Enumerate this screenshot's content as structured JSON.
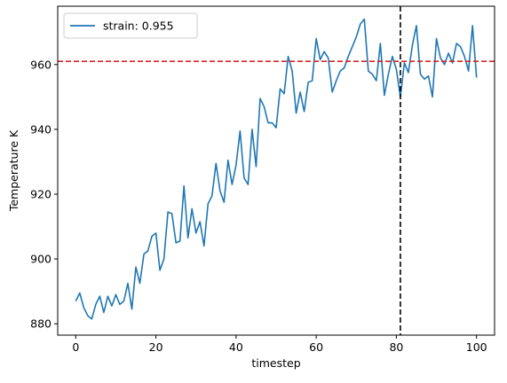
{
  "chart_data": {
    "type": "line",
    "xlabel": "timestep",
    "ylabel": "Temperature K",
    "xlim": [
      -4.5,
      104.5
    ],
    "ylim": [
      876.5,
      978
    ],
    "xticks": [
      0,
      20,
      40,
      60,
      80,
      100
    ],
    "yticks": [
      880,
      900,
      920,
      940,
      960
    ],
    "grid": false,
    "legend_position": "upper-left",
    "series": [
      {
        "name": "strain: 0.955",
        "color": "#1f77b4",
        "x": [
          0,
          1,
          2,
          3,
          4,
          5,
          6,
          7,
          8,
          9,
          10,
          11,
          12,
          13,
          14,
          15,
          16,
          17,
          18,
          19,
          20,
          21,
          22,
          23,
          24,
          25,
          26,
          27,
          28,
          29,
          30,
          31,
          32,
          33,
          34,
          35,
          36,
          37,
          38,
          39,
          40,
          41,
          42,
          43,
          44,
          45,
          46,
          47,
          48,
          49,
          50,
          51,
          52,
          53,
          54,
          55,
          56,
          57,
          58,
          59,
          60,
          61,
          62,
          63,
          64,
          65,
          66,
          67,
          68,
          69,
          70,
          71,
          72,
          73,
          74,
          75,
          76,
          77,
          78,
          79,
          80,
          81,
          82,
          83,
          84,
          85,
          86,
          87,
          88,
          89,
          90,
          91,
          92,
          93,
          94,
          95,
          96,
          97,
          98,
          99,
          100
        ],
        "y": [
          887,
          889.5,
          885,
          882.5,
          881.5,
          886,
          888.5,
          883.5,
          888.5,
          885.5,
          889,
          886,
          887,
          892.5,
          884.5,
          897.5,
          892.5,
          901.5,
          902.5,
          907,
          908,
          896.5,
          900,
          914.5,
          914,
          905,
          905.5,
          922.5,
          906.5,
          915.5,
          908,
          911.5,
          904,
          917,
          919.5,
          929.5,
          921,
          917.5,
          930.5,
          923,
          929,
          939.5,
          925,
          923,
          940,
          928.5,
          949.5,
          947,
          942,
          942,
          940.5,
          952.5,
          951,
          962.5,
          958,
          945,
          951.5,
          945.5,
          954.5,
          955,
          968,
          961.5,
          964,
          962,
          951.5,
          955,
          958,
          959,
          962.5,
          965.5,
          968.5,
          972.5,
          974,
          958,
          957,
          955,
          966.5,
          950.5,
          957,
          962.5,
          958.5,
          950,
          960.5,
          957.5,
          966,
          972,
          957,
          955.5,
          956.5,
          950,
          968,
          962,
          960,
          963.5,
          960.5,
          966.5,
          965.5,
          962.5,
          958,
          972,
          956
        ]
      }
    ],
    "reference_lines": [
      {
        "orientation": "horizontal",
        "value": 961,
        "color": "#d62728",
        "style": "dashed"
      },
      {
        "orientation": "vertical",
        "value": 81,
        "color": "#000000",
        "style": "dashed"
      }
    ]
  }
}
